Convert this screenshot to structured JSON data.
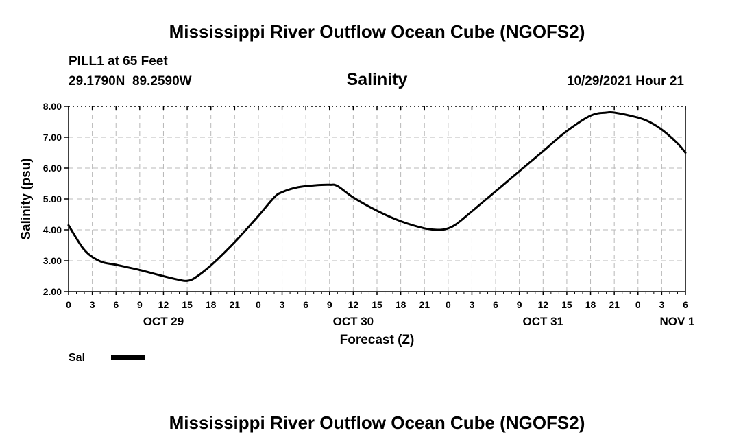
{
  "chart_data": {
    "type": "line",
    "title": "Mississippi River Outflow Ocean Cube (NGOFS2)",
    "title_repeat": "Mississippi River Outflow Ocean Cube (NGOFS2)",
    "station": "PILL1 at 65 Feet",
    "coordinates": "29.1790N  89.2590W",
    "subtitle": "Salinity",
    "timestamp": "10/29/2021 Hour 21",
    "xlabel": "Forecast (Z)",
    "ylabel": "Salinity (psu)",
    "ylim": [
      2.0,
      8.0
    ],
    "y_ticks": [
      "2.00",
      "3.00",
      "4.00",
      "5.00",
      "6.00",
      "7.00",
      "8.00"
    ],
    "x_range_hours": [
      0,
      78
    ],
    "x_tick_labels": [
      "0",
      "3",
      "6",
      "9",
      "12",
      "15",
      "18",
      "21",
      "0",
      "3",
      "6",
      "9",
      "12",
      "15",
      "18",
      "21",
      "0",
      "3",
      "6",
      "9",
      "12",
      "15",
      "18",
      "21",
      "0",
      "3",
      "6"
    ],
    "day_labels": [
      {
        "label": "OCT 29",
        "hour": 12
      },
      {
        "label": "OCT 30",
        "hour": 36
      },
      {
        "label": "OCT 31",
        "hour": 60
      },
      {
        "label": "NOV 1",
        "hour": 78
      }
    ],
    "grid": true,
    "legend_position": "bottom-left",
    "series": [
      {
        "name": "Sal",
        "color": "#000000",
        "x": [
          0,
          2,
          4,
          6,
          9,
          12,
          14,
          15,
          16,
          18,
          21,
          24,
          26,
          27,
          29,
          31,
          33,
          34,
          36,
          39,
          42,
          45,
          47,
          48,
          49,
          51,
          54,
          57,
          60,
          63,
          66,
          68,
          69,
          71,
          73,
          75,
          77,
          78
        ],
        "values": [
          4.15,
          3.35,
          2.98,
          2.87,
          2.7,
          2.5,
          2.38,
          2.35,
          2.45,
          2.85,
          3.6,
          4.45,
          5.05,
          5.22,
          5.38,
          5.44,
          5.46,
          5.42,
          5.05,
          4.62,
          4.28,
          4.05,
          4.0,
          4.05,
          4.18,
          4.6,
          5.25,
          5.9,
          6.55,
          7.2,
          7.7,
          7.8,
          7.8,
          7.7,
          7.55,
          7.25,
          6.8,
          6.5
        ]
      }
    ]
  }
}
